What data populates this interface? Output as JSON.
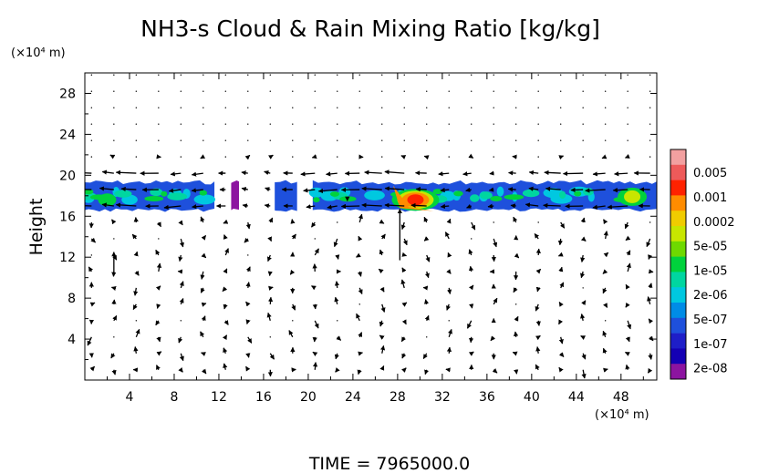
{
  "chart_data": {
    "type": "heatmap",
    "title": "NH3-s Cloud & Rain Mixing Ratio [kg/kg]",
    "xlabel": "",
    "x_unit": "(×10⁴ m)",
    "ylabel": "Height",
    "y_unit": "(×10⁴ m)",
    "xlim": [
      0,
      51.2
    ],
    "ylim": [
      0,
      30
    ],
    "x_ticks": [
      "4",
      "8",
      "12",
      "16",
      "20",
      "24",
      "28",
      "32",
      "36",
      "40",
      "44",
      "48"
    ],
    "y_ticks": [
      "4",
      "8",
      "12",
      "16",
      "20",
      "24",
      "28"
    ],
    "x_tick_values": [
      4,
      8,
      12,
      16,
      20,
      24,
      28,
      32,
      36,
      40,
      44,
      48
    ],
    "y_tick_values": [
      4,
      8,
      12,
      16,
      20,
      24,
      28
    ],
    "colorbar": {
      "labels": [
        "0.005",
        "0.001",
        "0.0002",
        "5e-05",
        "1e-05",
        "2e-06",
        "5e-07",
        "1e-07",
        "2e-08"
      ],
      "colors": [
        "#f2a0a0",
        "#ee5a5a",
        "#ff2200",
        "#ff8c00",
        "#f0cc00",
        "#c8e600",
        "#6ed900",
        "#00d23c",
        "#00d6a0",
        "#00c8e0",
        "#008ce6",
        "#1e50dc",
        "#1e1ec8",
        "#1400b4",
        "#8c14a0"
      ]
    },
    "cloud_layer": {
      "base_height": 16.6,
      "top_height": 19.4,
      "segments": [
        {
          "x0": 0,
          "x1": 11.6,
          "level": "1e-07"
        },
        {
          "x0": 13.1,
          "x1": 13.8,
          "level": "2e-08"
        },
        {
          "x0": 17.0,
          "x1": 19.0,
          "level": "1e-07"
        },
        {
          "x0": 20.4,
          "x1": 51.2,
          "level": "1e-07"
        }
      ],
      "cores": [
        {
          "x": 29.6,
          "y": 17.6,
          "level": "0.001"
        },
        {
          "x": 49.0,
          "y": 17.9,
          "level": "5e-05"
        },
        {
          "x": 2.0,
          "y": 17.6,
          "level": "1e-05"
        }
      ]
    },
    "footer": "TIME = 7965000.0"
  }
}
